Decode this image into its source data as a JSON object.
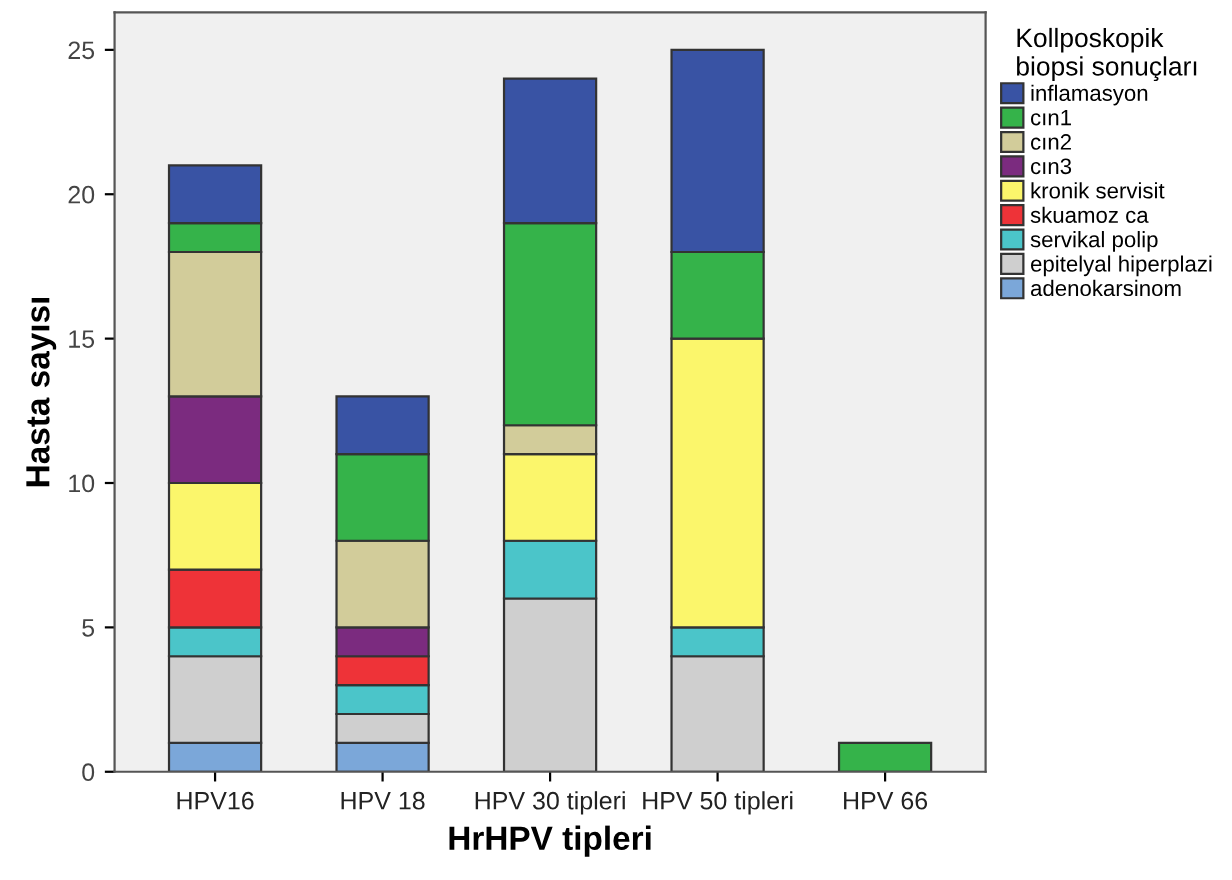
{
  "chart_data": {
    "type": "bar",
    "stacked": true,
    "xlabel": "HrHPV tipleri",
    "ylabel": "Hasta sayısı",
    "legend_title": "Kollposkopik\nbiopsi sonuçları",
    "legend": "right",
    "grid": false,
    "categories": [
      "HPV16",
      "HPV 18",
      "HPV 30 tipleri",
      "HPV 50 tipleri",
      "HPV 66"
    ],
    "ylim": [
      0,
      26.3
    ],
    "yticks": [
      0,
      5,
      10,
      15,
      20,
      25
    ],
    "series": [
      {
        "name": "adenokarsinom",
        "color": "#7ba7d9",
        "values": [
          1,
          1,
          null,
          null,
          null
        ]
      },
      {
        "name": "epitelyal hiperplazi",
        "color": "#cfcfcf",
        "values": [
          3,
          1,
          6,
          4,
          null
        ]
      },
      {
        "name": "servikal polip",
        "color": "#4bc5c9",
        "values": [
          1,
          1,
          2,
          1,
          null
        ]
      },
      {
        "name": "skuamoz ca",
        "color": "#ee3338",
        "values": [
          2,
          1,
          null,
          null,
          null
        ]
      },
      {
        "name": "kronik servisit",
        "color": "#fbf66b",
        "values": [
          3,
          null,
          3,
          10,
          null
        ]
      },
      {
        "name": "cın3",
        "color": "#7b2b7f",
        "values": [
          3,
          1,
          null,
          null,
          null
        ]
      },
      {
        "name": "cın2",
        "color": "#d2cc9a",
        "values": [
          5,
          3,
          1,
          null,
          null
        ]
      },
      {
        "name": "cın1",
        "color": "#35b34a",
        "values": [
          1,
          3,
          7,
          3,
          1
        ]
      },
      {
        "name": "inflamasyon",
        "color": "#3953a4",
        "values": [
          2,
          2,
          5,
          7,
          null
        ]
      }
    ]
  }
}
